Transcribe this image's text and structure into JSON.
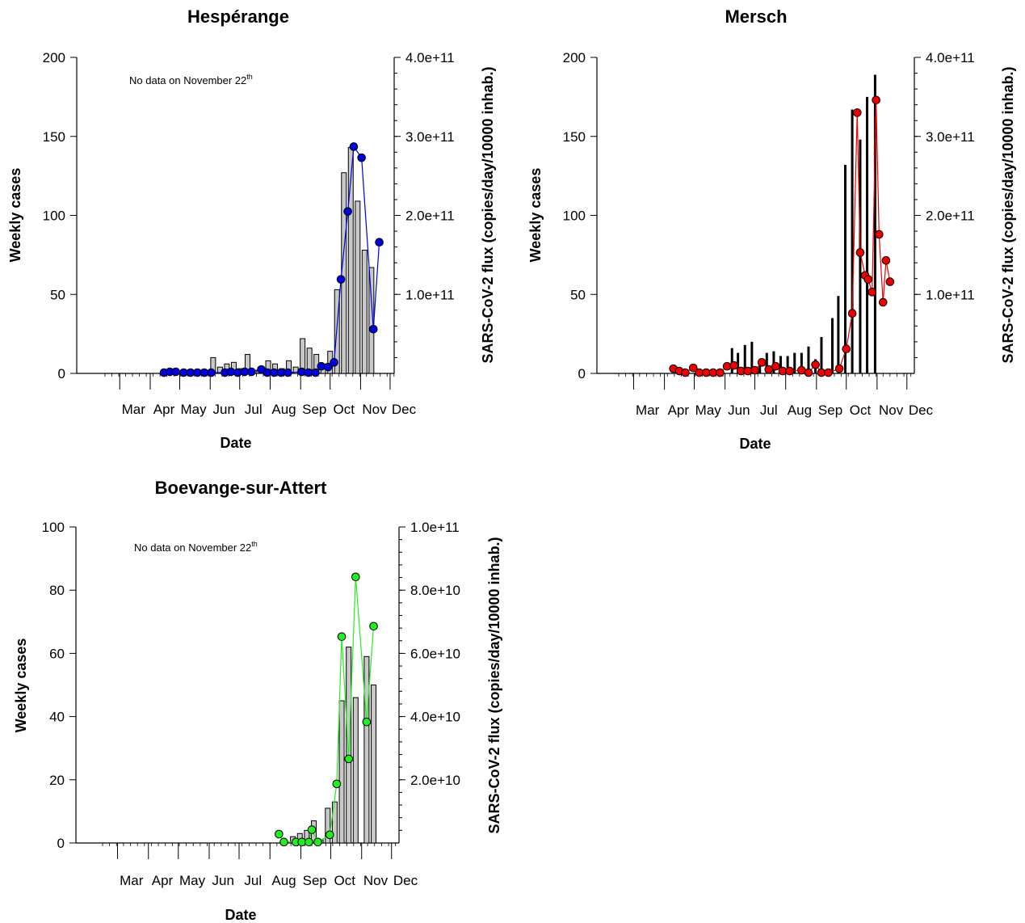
{
  "chart_data": [
    {
      "type": "bar",
      "title": "Hespérange",
      "xlabel": "Date",
      "ylabel": "Weekly cases",
      "y2label": "SARS-CoV-2 flux (copies/day/10000 inhab.)",
      "note": "No data on November 22",
      "note_sup": "th",
      "x_ticks": [
        "Mar",
        "Apr",
        "May",
        "Jun",
        "Jul",
        "Aug",
        "Sep",
        "Oct",
        "Nov",
        "Dec"
      ],
      "ylim": [
        0,
        200
      ],
      "y_ticks": [
        "0",
        "50",
        "100",
        "150",
        "200"
      ],
      "y2lim": [
        0,
        400000000000
      ],
      "y2_ticks": [
        "1.0e+11",
        "2.0e+11",
        "3.0e+11",
        "4.0e+11"
      ],
      "y2_tick_values": [
        100000000000,
        200000000000,
        300000000000,
        400000000000
      ],
      "bar_style": "hollow",
      "bar_color": "#c8c8c8",
      "marker_color": "#0000e0",
      "bars": [
        {
          "x": "2020-06-04",
          "y": 10
        },
        {
          "x": "2020-06-11",
          "y": 4
        },
        {
          "x": "2020-06-18",
          "y": 6
        },
        {
          "x": "2020-06-25",
          "y": 7
        },
        {
          "x": "2020-07-02",
          "y": 3
        },
        {
          "x": "2020-07-09",
          "y": 12
        },
        {
          "x": "2020-07-16",
          "y": 2
        },
        {
          "x": "2020-07-23",
          "y": 3
        },
        {
          "x": "2020-07-30",
          "y": 8
        },
        {
          "x": "2020-08-06",
          "y": 6
        },
        {
          "x": "2020-08-13",
          "y": 3
        },
        {
          "x": "2020-08-20",
          "y": 8
        },
        {
          "x": "2020-08-27",
          "y": 4
        },
        {
          "x": "2020-09-03",
          "y": 22
        },
        {
          "x": "2020-09-10",
          "y": 16
        },
        {
          "x": "2020-09-17",
          "y": 12
        },
        {
          "x": "2020-09-24",
          "y": 6
        },
        {
          "x": "2020-10-01",
          "y": 14
        },
        {
          "x": "2020-10-08",
          "y": 53
        },
        {
          "x": "2020-10-15",
          "y": 127
        },
        {
          "x": "2020-10-22",
          "y": 143
        },
        {
          "x": "2020-10-29",
          "y": 109
        },
        {
          "x": "2020-11-05",
          "y": 78
        },
        {
          "x": "2020-11-12",
          "y": 67
        }
      ],
      "flux": [
        {
          "x": "2020-04-15",
          "y": 1000000000
        },
        {
          "x": "2020-04-21",
          "y": 2000000000
        },
        {
          "x": "2020-04-27",
          "y": 2000000000
        },
        {
          "x": "2020-05-05",
          "y": 1000000000
        },
        {
          "x": "2020-05-12",
          "y": 1000000000
        },
        {
          "x": "2020-05-19",
          "y": 1000000000
        },
        {
          "x": "2020-05-26",
          "y": 1000000000
        },
        {
          "x": "2020-06-02",
          "y": 1000000000
        },
        {
          "x": "2020-06-16",
          "y": 1000000000
        },
        {
          "x": "2020-06-22",
          "y": 2000000000
        },
        {
          "x": "2020-06-29",
          "y": 1000000000
        },
        {
          "x": "2020-07-06",
          "y": 2000000000
        },
        {
          "x": "2020-07-13",
          "y": 2000000000
        },
        {
          "x": "2020-07-23",
          "y": 5000000000
        },
        {
          "x": "2020-07-29",
          "y": 1000000000
        },
        {
          "x": "2020-08-05",
          "y": 1000000000
        },
        {
          "x": "2020-08-12",
          "y": 1000000000
        },
        {
          "x": "2020-08-19",
          "y": 1000000000
        },
        {
          "x": "2020-09-02",
          "y": 2000000000
        },
        {
          "x": "2020-09-09",
          "y": 1000000000
        },
        {
          "x": "2020-09-16",
          "y": 1000000000
        },
        {
          "x": "2020-09-22",
          "y": 9000000000
        },
        {
          "x": "2020-09-29",
          "y": 8000000000
        },
        {
          "x": "2020-10-05",
          "y": 14000000000
        },
        {
          "x": "2020-10-12",
          "y": 119000000000
        },
        {
          "x": "2020-10-19",
          "y": 205000000000
        },
        {
          "x": "2020-10-25",
          "y": 287000000000
        },
        {
          "x": "2020-11-02",
          "y": 273000000000
        },
        {
          "x": "2020-11-14",
          "y": 56000000000
        },
        {
          "x": "2020-11-20",
          "y": 166000000000
        }
      ]
    },
    {
      "type": "bar",
      "title": "Mersch",
      "xlabel": "Date",
      "ylabel": "Weekly cases",
      "y2label": "SARS-CoV-2 flux (copies/day/10000 inhab.)",
      "note": "",
      "note_sup": "",
      "x_ticks": [
        "Mar",
        "Apr",
        "May",
        "Jun",
        "Jul",
        "Aug",
        "Sep",
        "Oct",
        "Nov",
        "Dec"
      ],
      "ylim": [
        0,
        200
      ],
      "y_ticks": [
        "0",
        "50",
        "100",
        "150",
        "200"
      ],
      "y2lim": [
        0,
        400000000000
      ],
      "y2_ticks": [
        "1.0e+11",
        "2.0e+11",
        "3.0e+11",
        "4.0e+11"
      ],
      "y2_tick_values": [
        100000000000,
        200000000000,
        300000000000,
        400000000000
      ],
      "bar_style": "thin",
      "bar_color": "#000000",
      "marker_color": "#ee0000",
      "bars": [
        {
          "x": "2020-06-08",
          "y": 16
        },
        {
          "x": "2020-06-14",
          "y": 13
        },
        {
          "x": "2020-06-21",
          "y": 18
        },
        {
          "x": "2020-06-28",
          "y": 20
        },
        {
          "x": "2020-07-06",
          "y": 7
        },
        {
          "x": "2020-07-13",
          "y": 13
        },
        {
          "x": "2020-07-20",
          "y": 14
        },
        {
          "x": "2020-07-27",
          "y": 11
        },
        {
          "x": "2020-08-03",
          "y": 11
        },
        {
          "x": "2020-08-10",
          "y": 13
        },
        {
          "x": "2020-08-17",
          "y": 13
        },
        {
          "x": "2020-08-24",
          "y": 17
        },
        {
          "x": "2020-08-31",
          "y": 9
        },
        {
          "x": "2020-09-06",
          "y": 23
        },
        {
          "x": "2020-09-17",
          "y": 35
        },
        {
          "x": "2020-09-23",
          "y": 49
        },
        {
          "x": "2020-09-30",
          "y": 132
        },
        {
          "x": "2020-10-07",
          "y": 167
        },
        {
          "x": "2020-10-15",
          "y": 148
        },
        {
          "x": "2020-10-22",
          "y": 175
        },
        {
          "x": "2020-10-30",
          "y": 189
        }
      ],
      "flux": [
        {
          "x": "2020-04-10",
          "y": 6000000000
        },
        {
          "x": "2020-04-16",
          "y": 3000000000
        },
        {
          "x": "2020-04-22",
          "y": 1000000000
        },
        {
          "x": "2020-04-30",
          "y": 7000000000
        },
        {
          "x": "2020-05-06",
          "y": 1000000000
        },
        {
          "x": "2020-05-13",
          "y": 1000000000
        },
        {
          "x": "2020-05-20",
          "y": 1000000000
        },
        {
          "x": "2020-05-27",
          "y": 1000000000
        },
        {
          "x": "2020-06-03",
          "y": 9000000000
        },
        {
          "x": "2020-06-10",
          "y": 10000000000
        },
        {
          "x": "2020-06-17",
          "y": 3000000000
        },
        {
          "x": "2020-06-24",
          "y": 3000000000
        },
        {
          "x": "2020-07-01",
          "y": 4000000000
        },
        {
          "x": "2020-07-08",
          "y": 14000000000
        },
        {
          "x": "2020-07-15",
          "y": 5000000000
        },
        {
          "x": "2020-07-22",
          "y": 9000000000
        },
        {
          "x": "2020-07-29",
          "y": 3000000000
        },
        {
          "x": "2020-08-05",
          "y": 3000000000
        },
        {
          "x": "2020-08-17",
          "y": 4000000000
        },
        {
          "x": "2020-08-24",
          "y": 1000000000
        },
        {
          "x": "2020-08-31",
          "y": 11000000000
        },
        {
          "x": "2020-09-06",
          "y": 1000000000
        },
        {
          "x": "2020-09-13",
          "y": 1000000000
        },
        {
          "x": "2020-09-24",
          "y": 6000000000
        },
        {
          "x": "2020-10-01",
          "y": 31000000000
        },
        {
          "x": "2020-10-07",
          "y": 76000000000
        },
        {
          "x": "2020-10-12",
          "y": 330000000000
        },
        {
          "x": "2020-10-15",
          "y": 153000000000
        },
        {
          "x": "2020-10-20",
          "y": 124000000000
        },
        {
          "x": "2020-10-23",
          "y": 119000000000
        },
        {
          "x": "2020-10-27",
          "y": 103000000000
        },
        {
          "x": "2020-10-31",
          "y": 346000000000
        },
        {
          "x": "2020-11-03",
          "y": 176000000000
        },
        {
          "x": "2020-11-07",
          "y": 90000000000
        },
        {
          "x": "2020-11-10",
          "y": 143000000000
        },
        {
          "x": "2020-11-14",
          "y": 116000000000
        }
      ]
    },
    {
      "type": "bar",
      "title": "Boevange-sur-Attert",
      "xlabel": "Date",
      "ylabel": "Weekly cases",
      "y2label": "SARS-CoV-2 flux (copies/day/10000 inhab.)",
      "note": "No data on November 22",
      "note_sup": "th",
      "x_ticks": [
        "Mar",
        "Apr",
        "May",
        "Jun",
        "Jul",
        "Aug",
        "Sep",
        "Oct",
        "Nov",
        "Dec"
      ],
      "ylim": [
        0,
        100
      ],
      "y_ticks": [
        "0",
        "20",
        "40",
        "60",
        "80",
        "100"
      ],
      "y2lim": [
        0,
        100000000000
      ],
      "y2_ticks": [
        "2.0e+10",
        "4.0e+10",
        "6.0e+10",
        "8.0e+10",
        "1.0e+11"
      ],
      "y2_tick_values": [
        20000000000,
        40000000000,
        60000000000,
        80000000000,
        100000000000
      ],
      "bar_style": "hollow",
      "bar_color": "#c8c8c8",
      "marker_color": "#22ee22",
      "bars": [
        {
          "x": "2020-08-24",
          "y": 2
        },
        {
          "x": "2020-08-31",
          "y": 3
        },
        {
          "x": "2020-09-07",
          "y": 4
        },
        {
          "x": "2020-09-14",
          "y": 7
        },
        {
          "x": "2020-09-21",
          "y": 1
        },
        {
          "x": "2020-09-28",
          "y": 11
        },
        {
          "x": "2020-10-05",
          "y": 13
        },
        {
          "x": "2020-10-12",
          "y": 45
        },
        {
          "x": "2020-10-19",
          "y": 62
        },
        {
          "x": "2020-10-26",
          "y": 46
        },
        {
          "x": "2020-11-06",
          "y": 59
        },
        {
          "x": "2020-11-13",
          "y": 50
        }
      ],
      "flux": [
        {
          "x": "2020-08-10",
          "y": 2800000000
        },
        {
          "x": "2020-08-15",
          "y": 300000000
        },
        {
          "x": "2020-08-27",
          "y": 300000000
        },
        {
          "x": "2020-09-02",
          "y": 300000000
        },
        {
          "x": "2020-09-09",
          "y": 300000000
        },
        {
          "x": "2020-09-12",
          "y": 4200000000
        },
        {
          "x": "2020-09-18",
          "y": 300000000
        },
        {
          "x": "2020-09-30",
          "y": 2600000000
        },
        {
          "x": "2020-10-07",
          "y": 18700000000
        },
        {
          "x": "2020-10-12",
          "y": 65300000000
        },
        {
          "x": "2020-10-19",
          "y": 26600000000
        },
        {
          "x": "2020-10-26",
          "y": 84200000000
        },
        {
          "x": "2020-11-06",
          "y": 38300000000
        },
        {
          "x": "2020-11-13",
          "y": 68600000000
        }
      ]
    }
  ]
}
